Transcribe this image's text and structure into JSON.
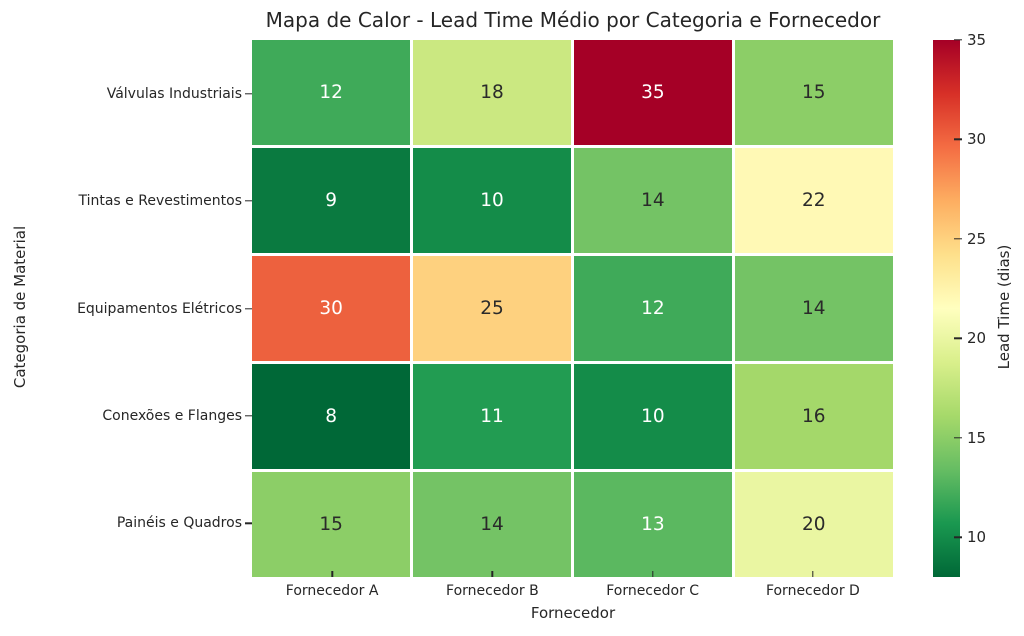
{
  "chart_data": {
    "type": "heatmap",
    "title": "Mapa de Calor - Lead Time Médio por Categoria e Fornecedor",
    "xlabel": "Fornecedor",
    "ylabel": "Categoria de Material",
    "x_categories": [
      "Fornecedor A",
      "Fornecedor B",
      "Fornecedor C",
      "Fornecedor D"
    ],
    "y_categories": [
      "Válvulas Industriais",
      "Tintas e Revestimentos",
      "Equipamentos Elétricos",
      "Conexões e Flanges",
      "Painéis e Quadros"
    ],
    "values": [
      [
        12,
        18,
        35,
        15
      ],
      [
        9,
        10,
        14,
        22
      ],
      [
        30,
        25,
        12,
        14
      ],
      [
        8,
        11,
        10,
        16
      ],
      [
        15,
        14,
        13,
        20
      ]
    ],
    "value_range": [
      8,
      35
    ],
    "colormap": "RdYlGn_r",
    "colormap_stops_low_to_high": [
      "#006837",
      "#1a9850",
      "#66bd63",
      "#a6d96a",
      "#d9ef8b",
      "#ffffbf",
      "#fee08b",
      "#fdae61",
      "#f46d43",
      "#d73027",
      "#a50026"
    ],
    "cell_colors": [
      [
        "#3faa59",
        "#cbe881",
        "#a50026",
        "#8cce67"
      ],
      [
        "#0a7a40",
        "#148c49",
        "#74c365",
        "#fff9b5"
      ],
      [
        "#ed613e",
        "#fed17f",
        "#3faa59",
        "#74c365"
      ],
      [
        "#006837",
        "#229c52",
        "#148c49",
        "#a4d86a"
      ],
      [
        "#8cce67",
        "#74c365",
        "#5bb860",
        "#eaf6a2"
      ]
    ],
    "cell_text_colors": [
      [
        "#ffffff",
        "#2a2a2a",
        "#ffffff",
        "#2a2a2a"
      ],
      [
        "#ffffff",
        "#ffffff",
        "#2a2a2a",
        "#2a2a2a"
      ],
      [
        "#ffffff",
        "#2a2a2a",
        "#ffffff",
        "#2a2a2a"
      ],
      [
        "#ffffff",
        "#ffffff",
        "#ffffff",
        "#2a2a2a"
      ],
      [
        "#2a2a2a",
        "#2a2a2a",
        "#ffffff",
        "#2a2a2a"
      ]
    ],
    "grid_line_color": "#ffffff",
    "colorbar": {
      "label": "Lead Time (dias)",
      "ticks": [
        35,
        30,
        25,
        20,
        15,
        10
      ]
    },
    "legend_position": "right-colorbar",
    "background": "#ffffff"
  }
}
